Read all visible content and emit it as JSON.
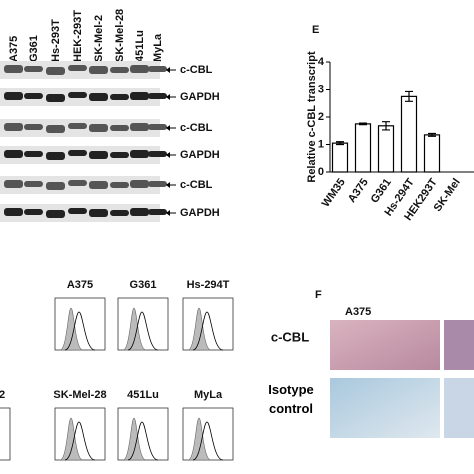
{
  "blot": {
    "lanes": [
      "A375",
      "G361",
      "Hs-293T",
      "HEK-293T",
      "SK-Mel-2",
      "SK-Mel-28",
      "451Lu",
      "MyLa"
    ],
    "band_labels": [
      "c-CBL",
      "GAPDH",
      "c-CBL",
      "GAPDH",
      "c-CBL",
      "GAPDH"
    ]
  },
  "flow": {
    "titles": [
      "A375",
      "G361",
      "Hs-294T",
      "2",
      "SK-Mel-28",
      "451Lu",
      "MyLa"
    ]
  },
  "panel_e": {
    "letter": "E"
  },
  "panel_f": {
    "letter": "F",
    "column": "A375",
    "rows": [
      "c-CBL",
      "Isotype control"
    ]
  },
  "chart_data": {
    "type": "bar",
    "ylabel": "Relative c-CBL transcript",
    "categories": [
      "WM35",
      "A375",
      "G361",
      "Hs-294T",
      "HEK293T",
      "SK-Mel"
    ],
    "values": [
      1.05,
      1.75,
      1.68,
      2.75,
      1.35,
      null
    ],
    "errors": [
      0.05,
      0.03,
      0.15,
      0.18,
      0.05,
      null
    ],
    "color": "#ffffff",
    "ylim": [
      0,
      4
    ],
    "yticks": [
      0,
      1,
      2,
      3,
      4
    ]
  }
}
